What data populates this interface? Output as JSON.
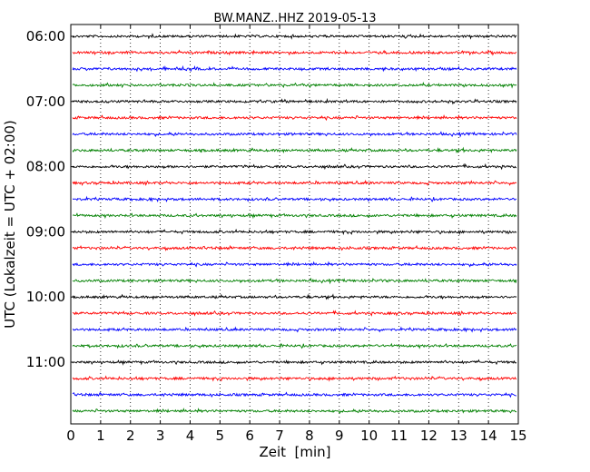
{
  "chart_data": {
    "type": "line",
    "title": "BW.MANZ..HHZ 2019-05-13",
    "xlabel": "Zeit  [min]",
    "ylabel": "UTC (Lokalzeit = UTC + 02:00)",
    "xlim": [
      0,
      15
    ],
    "x_ticks": [
      0,
      1,
      2,
      3,
      4,
      5,
      6,
      7,
      8,
      9,
      10,
      11,
      12,
      13,
      14,
      15
    ],
    "y_tick_labels": [
      "06:00",
      "07:00",
      "08:00",
      "09:00",
      "10:00",
      "11:00"
    ],
    "trace_start_times": [
      "06:00",
      "06:15",
      "06:30",
      "06:45",
      "07:00",
      "07:15",
      "07:30",
      "07:45",
      "08:00",
      "08:15",
      "08:30",
      "08:45",
      "09:00",
      "09:15",
      "09:30",
      "09:45",
      "10:00",
      "10:15",
      "10:30",
      "10:45",
      "11:00",
      "11:15",
      "11:30",
      "11:45"
    ],
    "trace_colors": [
      "#000000",
      "#ff0000",
      "#0000ff",
      "#008000"
    ],
    "grid": "vertical dotted at each minute",
    "legend": "none"
  }
}
